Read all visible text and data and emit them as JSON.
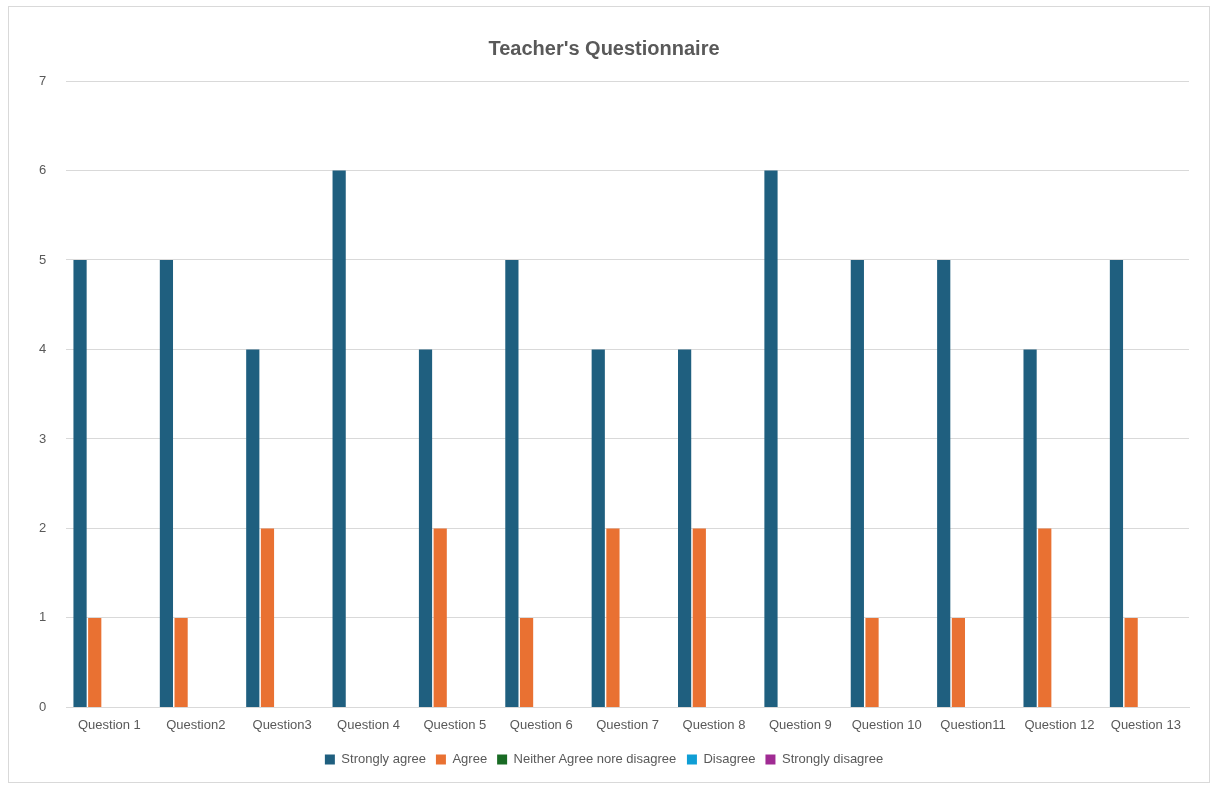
{
  "chart_data": {
    "type": "bar",
    "title": "Teacher's Questionnaire",
    "categories": [
      "Question 1",
      "Question2",
      "Question3",
      "Question 4",
      "Question 5",
      "Question 6",
      "Question 7",
      "Question 8",
      "Question 9",
      "Question 10",
      "Question11",
      "Question 12",
      "Question 13"
    ],
    "series": [
      {
        "name": "Strongly agree",
        "color": "#1f5f7f",
        "values": [
          5,
          5,
          4,
          6,
          4,
          5,
          4,
          4,
          6,
          5,
          5,
          4,
          5
        ]
      },
      {
        "name": "Agree",
        "color": "#e97132",
        "values": [
          1,
          1,
          2,
          0,
          2,
          1,
          2,
          2,
          0,
          1,
          1,
          2,
          1
        ]
      },
      {
        "name": "Neither Agree nore disagree",
        "color": "#196b24",
        "values": [
          0,
          0,
          0,
          0,
          0,
          0,
          0,
          0,
          0,
          0,
          0,
          0,
          0
        ]
      },
      {
        "name": "Disagree",
        "color": "#0f9ed5",
        "values": [
          0,
          0,
          0,
          0,
          0,
          0,
          0,
          0,
          0,
          0,
          0,
          0,
          0
        ]
      },
      {
        "name": "Strongly disagree",
        "color": "#a02b93",
        "values": [
          0,
          0,
          0,
          0,
          0,
          0,
          0,
          0,
          0,
          0,
          0,
          0,
          0
        ]
      }
    ],
    "ylim": [
      0,
      7
    ],
    "yticks": [
      0,
      1,
      2,
      3,
      4,
      5,
      6,
      7
    ],
    "grid": "y",
    "legend": "bottom"
  }
}
